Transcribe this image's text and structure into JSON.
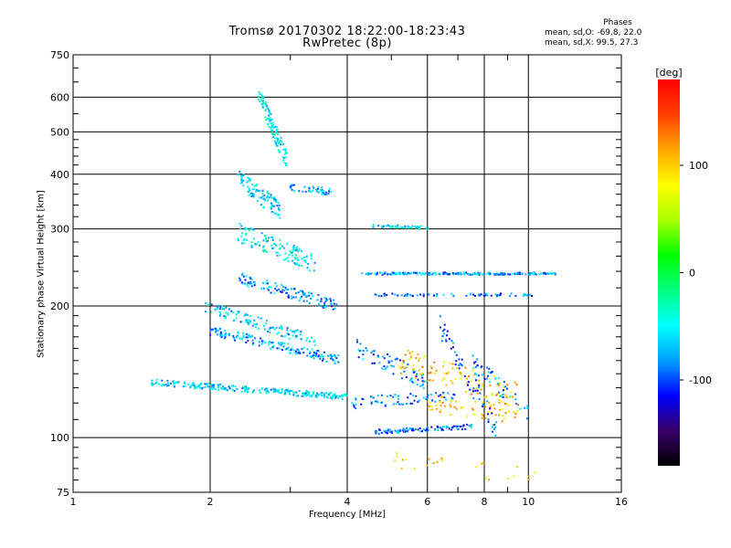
{
  "chart_data": {
    "type": "scatter",
    "title": "Tromsø 20170302 18:22:00-18:23:43",
    "subtitle": "RwPretec (8p)",
    "xlabel": "Frequency [MHz]",
    "ylabel": "Stationary phase Virtual Height [km]",
    "xscale": "log",
    "yscale": "log",
    "xlim": [
      1,
      16
    ],
    "ylim": [
      75,
      750
    ],
    "xticks": [
      1,
      2,
      4,
      6,
      8,
      10,
      16
    ],
    "yticks": [
      75,
      100,
      200,
      300,
      400,
      500,
      600,
      750
    ],
    "grid": true,
    "color_scale": {
      "label": "[deg]",
      "range": [
        -180,
        180
      ],
      "ticks": [
        {
          "value": 100,
          "label": "100"
        },
        {
          "value": 0,
          "label": "0"
        },
        {
          "value": -100,
          "label": "-100"
        }
      ],
      "colormap": [
        "#000000",
        "#3a006a",
        "#0000ff",
        "#00a0ff",
        "#00ffff",
        "#00ff80",
        "#00ff00",
        "#aaff00",
        "#ffff00",
        "#ffa500",
        "#ff4000",
        "#ff0000"
      ]
    },
    "phase_stats": {
      "header": "Phases",
      "o_mode": "mean, sd,O: -69.8, 22.0",
      "x_mode": "mean, sd,X:  99.5, 27.3"
    },
    "traces": [
      {
        "name": "",
        "x_range": [
          1.48,
          4.0
        ],
        "h_range": [
          134,
          124
        ],
        "phase": -60,
        "count": 260,
        "spread": 0.016
      },
      {
        "name": "",
        "x_range": [
          2.0,
          3.9
        ],
        "h_range": [
          176,
          150
        ],
        "phase": -75,
        "count": 160,
        "spread": 0.025
      },
      {
        "name": "",
        "x_range": [
          1.95,
          3.4
        ],
        "h_range": [
          200,
          166
        ],
        "phase": -65,
        "count": 110,
        "spread": 0.03
      },
      {
        "name": "",
        "x_range": [
          2.3,
          3.8
        ],
        "h_range": [
          232,
          200
        ],
        "phase": -80,
        "count": 120,
        "spread": 0.03
      },
      {
        "name": "",
        "x_range": [
          2.3,
          3.4
        ],
        "h_range": [
          295,
          250
        ],
        "phase": -55,
        "count": 120,
        "spread": 0.05
      },
      {
        "name": "",
        "x_range": [
          2.3,
          2.85
        ],
        "h_range": [
          390,
          330
        ],
        "phase": -60,
        "count": 100,
        "spread": 0.05
      },
      {
        "name": "",
        "x_range": [
          2.55,
          2.95
        ],
        "h_range": [
          610,
          430
        ],
        "phase": -50,
        "count": 110,
        "spread": 0.05
      },
      {
        "name": "",
        "x_range": [
          3.0,
          3.7
        ],
        "h_range": [
          372,
          365
        ],
        "phase": -70,
        "count": 45,
        "spread": 0.02
      },
      {
        "name": "",
        "x_range": [
          4.3,
          11.5
        ],
        "h_range": [
          237,
          237
        ],
        "phase": -80,
        "count": 200,
        "spread": 0.006
      },
      {
        "name": "",
        "x_range": [
          4.5,
          6.1
        ],
        "h_range": [
          305,
          302
        ],
        "phase": -55,
        "count": 45,
        "spread": 0.008
      },
      {
        "name": "",
        "x_range": [
          4.6,
          10.2
        ],
        "h_range": [
          212,
          212
        ],
        "phase": -90,
        "count": 65,
        "spread": 0.007
      },
      {
        "name": "",
        "x_range": [
          4.6,
          7.5
        ],
        "h_range": [
          103,
          106
        ],
        "phase": -90,
        "count": 100,
        "spread": 0.012
      },
      {
        "name": "",
        "x_range": [
          4.1,
          7.0
        ],
        "h_range": [
          120,
          125
        ],
        "phase": -90,
        "count": 70,
        "spread": 0.03
      },
      {
        "name": "",
        "x_range": [
          4.2,
          6.0
        ],
        "h_range": [
          160,
          135
        ],
        "phase": -90,
        "count": 70,
        "spread": 0.05
      },
      {
        "name": "",
        "x_range": [
          5.2,
          9.5
        ],
        "h_range": [
          150,
          125
        ],
        "phase": 100,
        "count": 110,
        "spread": 0.07
      },
      {
        "name": "",
        "x_range": [
          6.0,
          9.5
        ],
        "h_range": [
          120,
          113
        ],
        "phase": 100,
        "count": 60,
        "spread": 0.05
      },
      {
        "name": "",
        "x_range": [
          5.0,
          10.5
        ],
        "h_range": [
          90,
          80
        ],
        "phase": 90,
        "count": 25,
        "spread": 0.06
      },
      {
        "name": "",
        "x_range": [
          6.4,
          8.5
        ],
        "h_range": [
          180,
          105
        ],
        "phase": -100,
        "count": 60,
        "spread": 0.06
      },
      {
        "name": "",
        "x_range": [
          7.5,
          10.0
        ],
        "h_range": [
          148,
          115
        ],
        "phase": -80,
        "count": 45,
        "spread": 0.05
      }
    ]
  }
}
